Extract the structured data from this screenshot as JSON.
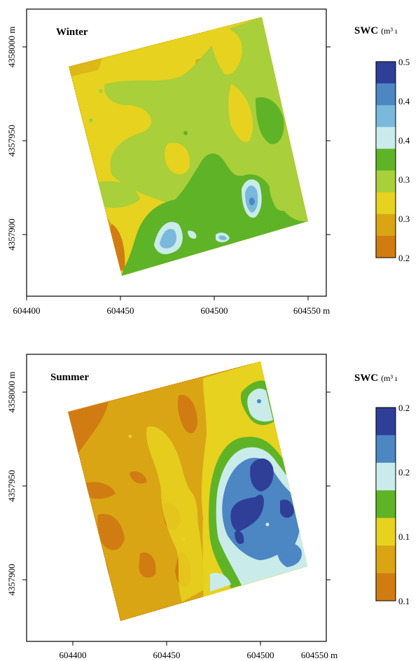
{
  "chart_data": [
    {
      "type": "heatmap",
      "panel_label": "Winter",
      "legend_title": "SWC",
      "legend_units": "(m³ ı",
      "x_tick_labels": [
        "604400",
        "604450",
        "604500",
        "604550 m"
      ],
      "y_tick_labels": [
        "4358000 m",
        "4357950",
        "4357900"
      ],
      "x_ticks": [
        604400,
        604450,
        604500,
        604550
      ],
      "y_ticks": [
        4358000,
        4357950,
        4357900
      ],
      "xlim": [
        604400,
        604560
      ],
      "ylim": [
        4357855,
        4358025
      ],
      "legend_labels": [
        "0.5",
        "0.4",
        "0.4",
        "0.3",
        "0.3",
        "0.2"
      ],
      "legend_colors": [
        "#2f3e96",
        "#4c86c3",
        "#7ab8dc",
        "#c9ecea",
        "#5fb327",
        "#a9cf3a",
        "#e6d21f",
        "#d9a514",
        "#d17c12"
      ]
    },
    {
      "type": "heatmap",
      "panel_label": "Summer",
      "legend_title": "SWC",
      "legend_units": "(m³ ı",
      "x_tick_labels": [
        "604400",
        "604450",
        "604500",
        "604550 m"
      ],
      "y_tick_labels": [
        "4358000 m",
        "4357950",
        "4357900"
      ],
      "x_ticks": [
        604400,
        604450,
        604500,
        604550
      ],
      "y_ticks": [
        4358000,
        4357950,
        4357900
      ],
      "xlim": [
        604380,
        604560
      ],
      "ylim": [
        4357855,
        4358025
      ],
      "legend_labels": [
        "0.2",
        "0.2",
        "0.1",
        "0.1"
      ],
      "legend_colors": [
        "#2f3e96",
        "#4c86c3",
        "#c9ecea",
        "#5fb327",
        "#e6d21f",
        "#d9a514",
        "#d17c12"
      ]
    }
  ]
}
